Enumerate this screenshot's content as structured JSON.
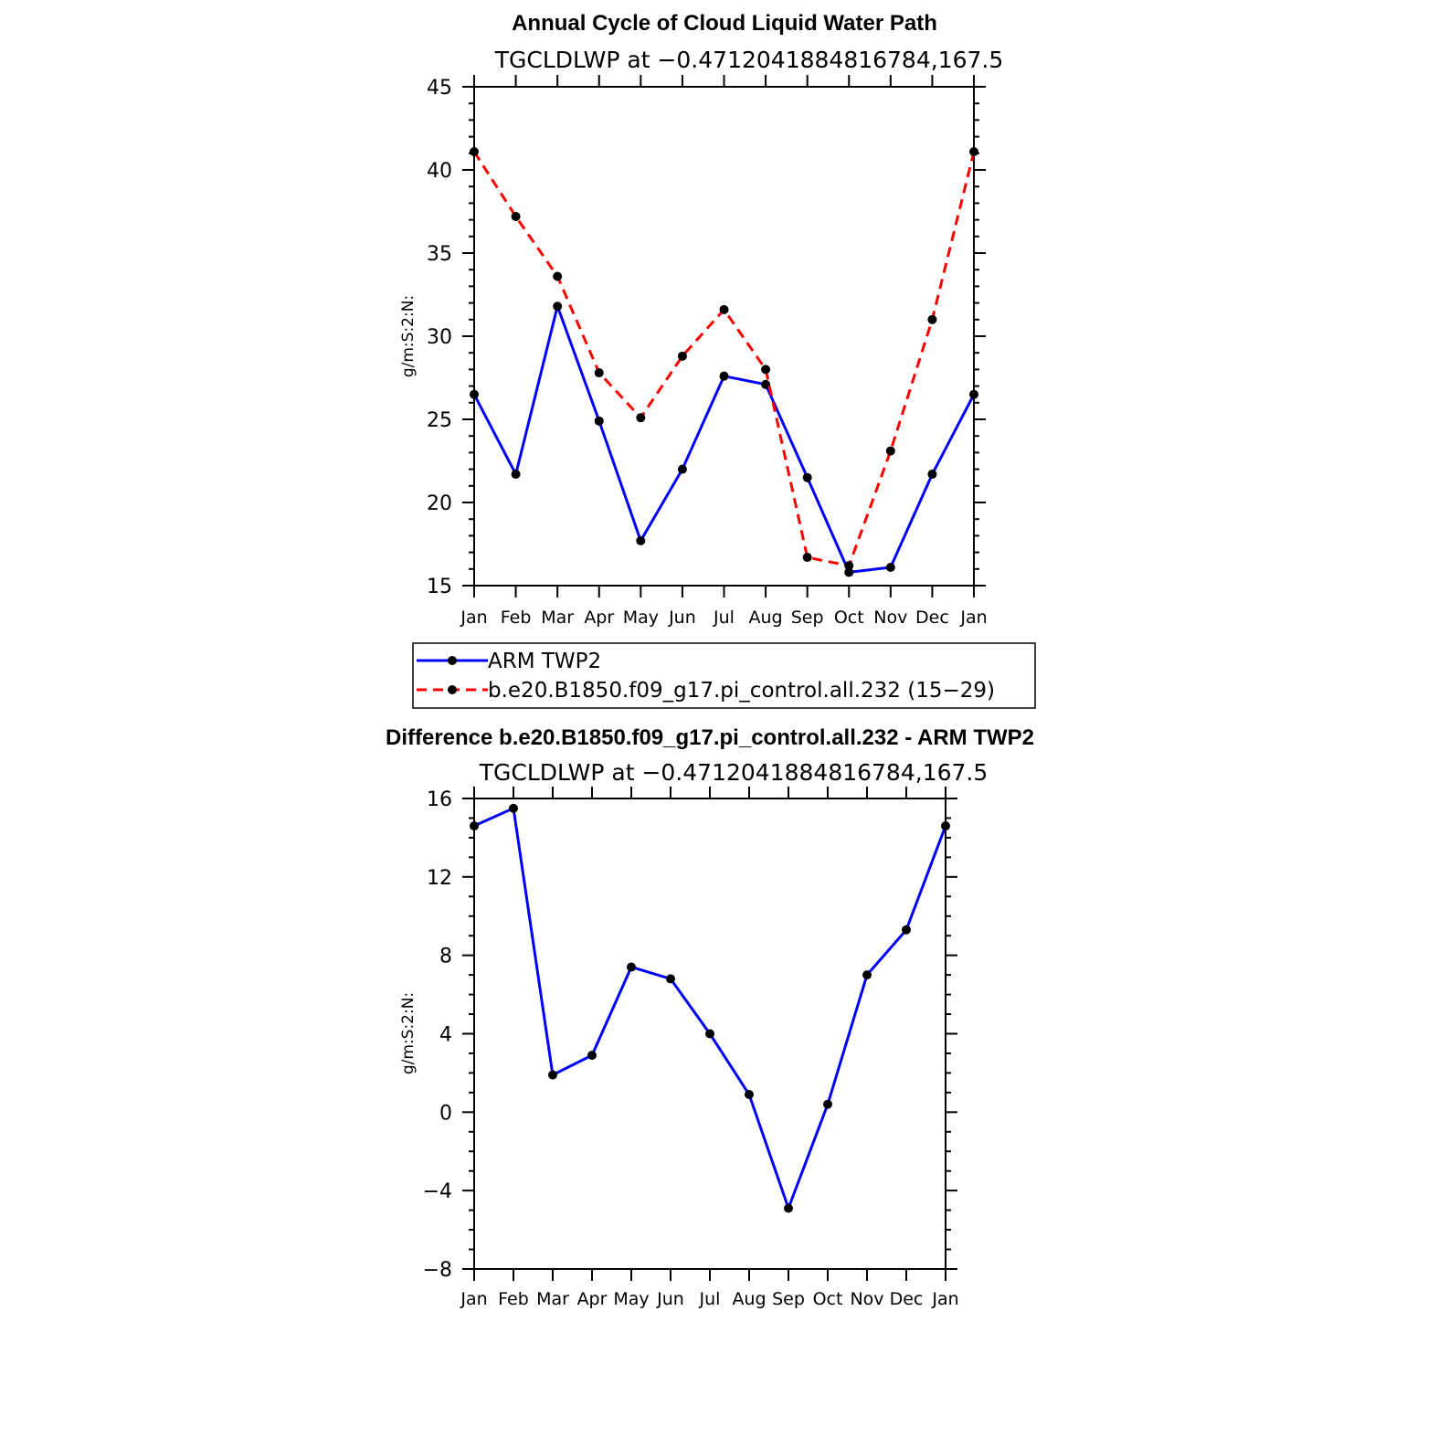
{
  "chart_data": [
    {
      "type": "line",
      "title": "Annual Cycle of Cloud Liquid Water Path",
      "subtitle": "TGCLDLWP at −0.4712041884816784,167.5",
      "xlabel": "",
      "ylabel": "g/m:S:2:N:",
      "categories": [
        "Jan",
        "Feb",
        "Mar",
        "Apr",
        "May",
        "Jun",
        "Jul",
        "Aug",
        "Sep",
        "Oct",
        "Nov",
        "Dec",
        "Jan"
      ],
      "ylim": [
        15,
        45
      ],
      "yticks": [
        "15",
        "20",
        "25",
        "30",
        "35",
        "40",
        "45"
      ],
      "yminor_step": 1,
      "legend_position": "bottom",
      "series": [
        {
          "name": "ARM TWP2",
          "color": "#0000ff",
          "dash": "solid",
          "values": [
            26.5,
            21.7,
            31.8,
            24.9,
            17.7,
            22.0,
            27.6,
            27.1,
            21.5,
            15.8,
            16.1,
            21.7,
            26.5
          ]
        },
        {
          "name": "b.e20.B1850.f09_g17.pi_control.all.232 (15−29)",
          "color": "#ff0000",
          "dash": "dashed",
          "values": [
            41.1,
            37.2,
            33.6,
            27.8,
            25.1,
            28.8,
            31.6,
            28.0,
            16.7,
            16.2,
            23.1,
            31.0,
            41.1
          ]
        }
      ]
    },
    {
      "type": "line",
      "title": "Difference b.e20.B1850.f09_g17.pi_control.all.232 - ARM TWP2",
      "subtitle": "TGCLDLWP at −0.4712041884816784,167.5",
      "xlabel": "",
      "ylabel": "g/m:S:2:N:",
      "categories": [
        "Jan",
        "Feb",
        "Mar",
        "Apr",
        "May",
        "Jun",
        "Jul",
        "Aug",
        "Sep",
        "Oct",
        "Nov",
        "Dec",
        "Jan"
      ],
      "ylim": [
        -8,
        16
      ],
      "yticks": [
        "−8",
        "−4",
        "0",
        "4",
        "8",
        "12",
        "16"
      ],
      "yminor_step": 1,
      "series": [
        {
          "color": "#0000ff",
          "dash": "solid",
          "values": [
            14.6,
            15.5,
            1.9,
            2.9,
            7.4,
            6.8,
            4.0,
            0.9,
            -4.9,
            0.4,
            7.0,
            9.3,
            14.6
          ]
        }
      ]
    }
  ]
}
